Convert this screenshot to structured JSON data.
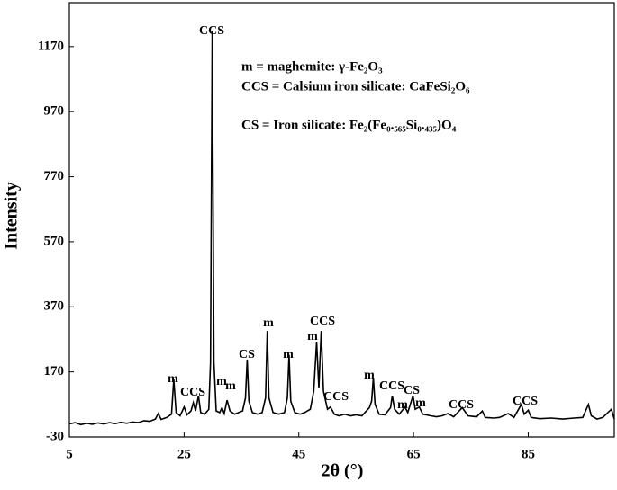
{
  "chart_data": {
    "type": "line",
    "xlabel": "2θ (°)",
    "ylabel": "Intensity",
    "color": "#000000",
    "xlim": [
      5,
      100
    ],
    "xticks": [
      5,
      25,
      45,
      65,
      85
    ],
    "ylim": [
      -30,
      1305
    ],
    "yticks": [
      -30,
      170,
      370,
      570,
      770,
      970,
      1170
    ],
    "legend_texts": [
      "m = maghemite: γ-Fe₂O₃",
      "CCS = Calsium iron silicate: CaFeSi₂O₆",
      "CS = Iron silicate: Fe₂(Fe₀.₅₆₅Si₀.₄₃₅)O₄"
    ],
    "annotations": [
      "CCS",
      "m",
      "CCS",
      "m",
      "m",
      "CS",
      "m",
      "m",
      "m",
      "CCS",
      "CCS",
      "m",
      "CCS",
      "CS",
      "m",
      "m",
      "CCS",
      "CCS"
    ],
    "x": [
      5,
      6,
      7,
      8,
      9,
      10,
      11,
      12,
      13,
      14,
      15,
      16,
      17,
      18,
      19,
      20,
      20.5,
      21,
      22,
      22.8,
      23.2,
      23.6,
      24.3,
      25,
      25.5,
      26.2,
      26.6,
      27,
      27.5,
      27.9,
      28.6,
      29.3,
      29.6,
      29.9,
      30.2,
      30.6,
      31.2,
      31.6,
      32,
      32.5,
      33,
      33.8,
      34.5,
      35.2,
      35.7,
      36,
      36.3,
      36.9,
      37.8,
      38.6,
      39.2,
      39.5,
      39.8,
      40.5,
      41.5,
      42.5,
      43,
      43.3,
      43.6,
      44.3,
      45.2,
      46,
      47,
      47.6,
      48.1,
      48.5,
      48.9,
      49.3,
      50,
      50.5,
      51.2,
      52,
      53,
      54,
      55,
      56,
      57.3,
      57.7,
      58,
      58.3,
      59,
      60,
      61,
      61.3,
      61.7,
      62.5,
      63.5,
      64,
      64.9,
      65.3,
      66,
      66.6,
      68,
      69,
      70,
      71,
      72,
      73.5,
      74.5,
      76,
      77,
      77.5,
      79,
      80,
      81.5,
      82.5,
      83.8,
      84.3,
      85,
      85.5,
      87,
      89,
      91,
      93,
      94.5,
      95.5,
      96,
      97,
      98,
      99.5,
      100
    ],
    "values": [
      10,
      14,
      8,
      12,
      9,
      13,
      10,
      14,
      11,
      15,
      12,
      16,
      14,
      20,
      18,
      25,
      42,
      24,
      30,
      40,
      147,
      45,
      35,
      62,
      38,
      50,
      75,
      50,
      97,
      45,
      40,
      55,
      200,
      1217,
      200,
      50,
      45,
      60,
      42,
      83,
      50,
      40,
      45,
      50,
      90,
      208,
      80,
      45,
      40,
      45,
      90,
      296,
      90,
      45,
      40,
      45,
      90,
      222,
      80,
      45,
      40,
      45,
      55,
      110,
      263,
      120,
      296,
      110,
      55,
      62,
      40,
      35,
      40,
      35,
      38,
      35,
      60,
      80,
      152,
      70,
      40,
      38,
      60,
      97,
      55,
      40,
      62,
      45,
      97,
      55,
      62,
      40,
      35,
      32,
      35,
      42,
      32,
      60,
      35,
      32,
      50,
      30,
      28,
      30,
      42,
      30,
      70,
      40,
      52,
      30,
      26,
      28,
      25,
      28,
      30,
      70,
      35,
      25,
      30,
      55,
      25
    ]
  }
}
